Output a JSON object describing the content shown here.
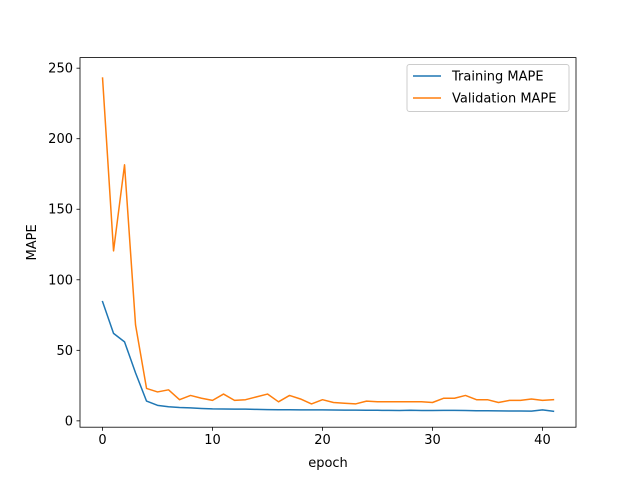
{
  "chart_data": {
    "type": "line",
    "xlabel": "epoch",
    "ylabel": "MAPE",
    "xlim": [
      -2.05,
      43.05
    ],
    "ylim": [
      -4.5,
      257.5
    ],
    "xticks": [
      0,
      10,
      20,
      30,
      40
    ],
    "yticks": [
      0,
      50,
      100,
      150,
      200,
      250
    ],
    "legend_position": "upper right",
    "grid": false,
    "x": [
      0,
      1,
      2,
      3,
      4,
      5,
      6,
      7,
      8,
      9,
      10,
      11,
      12,
      13,
      14,
      15,
      16,
      17,
      18,
      19,
      20,
      21,
      22,
      23,
      24,
      25,
      26,
      27,
      28,
      29,
      30,
      31,
      32,
      33,
      34,
      35,
      36,
      37,
      38,
      39,
      40,
      41
    ],
    "series": [
      {
        "name": "Training MAPE",
        "color": "#1f77b4",
        "values": [
          84.5,
          62,
          56,
          34,
          14,
          11,
          10,
          9.5,
          9.2,
          8.8,
          8.5,
          8.4,
          8.3,
          8.3,
          8.1,
          8.0,
          7.9,
          7.9,
          7.8,
          7.8,
          7.8,
          7.7,
          7.6,
          7.6,
          7.5,
          7.5,
          7.4,
          7.3,
          7.5,
          7.3,
          7.3,
          7.4,
          7.4,
          7.3,
          7.2,
          7.2,
          7.1,
          7.0,
          7.0,
          6.9,
          7.8,
          6.8
        ]
      },
      {
        "name": "Validation MAPE",
        "color": "#ff7f0e",
        "values": [
          243,
          120.5,
          181.5,
          68,
          23,
          20.5,
          22,
          15,
          18,
          16,
          14.5,
          19,
          14.5,
          15,
          17,
          19,
          13.5,
          18,
          15.5,
          12,
          15,
          13,
          12.5,
          12,
          14,
          13.5,
          13.5,
          13.5,
          13.5,
          13.5,
          13,
          16,
          16,
          18,
          15,
          15,
          13,
          14.5,
          14.5,
          15.5,
          14.5,
          15
        ]
      }
    ]
  }
}
